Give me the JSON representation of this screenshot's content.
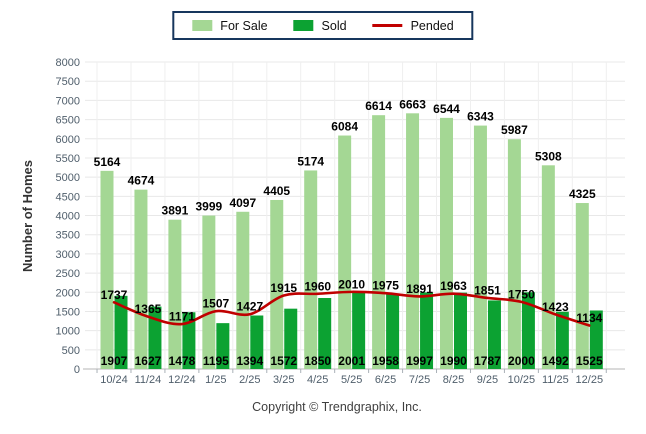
{
  "legend": {
    "items": [
      {
        "label": "For Sale",
        "type": "swatch",
        "color": "#A4D794"
      },
      {
        "label": "Sold",
        "type": "swatch",
        "color": "#0CA232"
      },
      {
        "label": "Pended",
        "type": "line",
        "color": "#C00000"
      }
    ]
  },
  "y_axis": {
    "title": "Number of Homes",
    "min": 0,
    "max": 8000,
    "step": 500
  },
  "footer": {
    "copyright": "Copyright © Trendgraphix, Inc."
  },
  "chart_data": {
    "type": "combo",
    "title": "",
    "xlabel": "",
    "ylabel": "Number of Homes",
    "ylim": [
      0,
      8000
    ],
    "grid": true,
    "legend_position": "top-center",
    "categories": [
      "10/24",
      "11/24",
      "12/24",
      "1/25",
      "2/25",
      "3/25",
      "4/25",
      "5/25",
      "6/25",
      "7/25",
      "8/25",
      "9/25",
      "10/25",
      "11/25",
      "12/25"
    ],
    "series": [
      {
        "name": "For Sale",
        "type": "bar",
        "color": "#A4D794",
        "values": [
          5164,
          4674,
          3891,
          3999,
          4097,
          4405,
          5174,
          6084,
          6614,
          6663,
          6544,
          6343,
          5987,
          5308,
          4325
        ]
      },
      {
        "name": "Sold",
        "type": "bar",
        "color": "#0CA232",
        "values": [
          1907,
          1627,
          1478,
          1195,
          1394,
          1572,
          1850,
          2001,
          1958,
          1997,
          1990,
          1787,
          2000,
          1492,
          1525
        ]
      },
      {
        "name": "Pended",
        "type": "line",
        "color": "#C00000",
        "values": [
          1737,
          1365,
          1171,
          1507,
          1427,
          1915,
          1960,
          2010,
          1975,
          1891,
          1963,
          1851,
          1750,
          1423,
          1134
        ]
      }
    ]
  }
}
